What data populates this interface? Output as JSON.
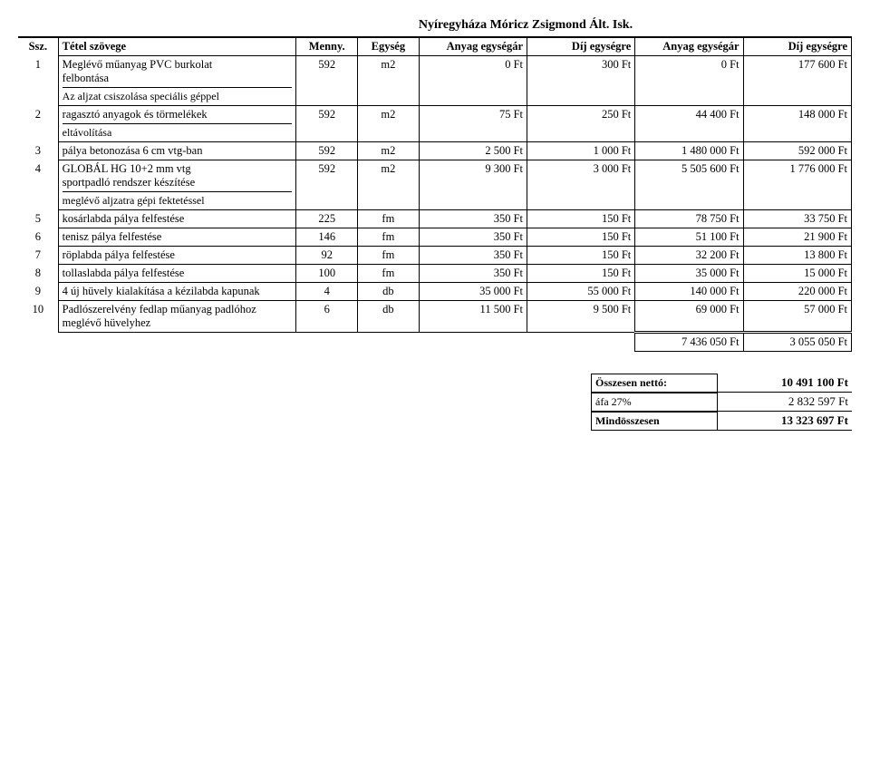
{
  "title": "Nyíregyháza Móricz Zsigmond Ált. Isk.",
  "columns": {
    "ssz": "Ssz.",
    "tetel": "Tétel szövege",
    "menny": "Menny.",
    "egyseg": "Egység",
    "anyag_egysegar": "Anyag egységár",
    "dij_egysegre": "Díj egységre",
    "anyag_egysegar2": "Anyag egységár",
    "dij_egysegre2": "Díj egységre"
  },
  "rows": [
    {
      "ssz": "1",
      "tetel": "Meglévő műanyag PVC burkolat\nfelbontása",
      "sub": "Az aljzat csiszolása speciális géppel",
      "menny": "592",
      "egyseg": "m2",
      "c1": "0 Ft",
      "c2": "300 Ft",
      "c3": "0 Ft",
      "c4": "177 600 Ft"
    },
    {
      "ssz": "2",
      "tetel": "ragasztó anyagok és törmelékek",
      "sub": "eltávolítása",
      "menny": "592",
      "egyseg": "m2",
      "c1": "75 Ft",
      "c2": "250 Ft",
      "c3": "44 400 Ft",
      "c4": "148 000 Ft"
    },
    {
      "ssz": "3",
      "tetel": "pálya betonozása 6 cm vtg-ban",
      "menny": "592",
      "egyseg": "m2",
      "c1": "2 500 Ft",
      "c2": "1 000 Ft",
      "c3": "1 480 000 Ft",
      "c4": "592 000 Ft"
    },
    {
      "ssz": "4",
      "tetel": "GLOBÁL HG 10+2 mm vtg\nsportpadló rendszer készítése",
      "sub": "meglévő aljzatra gépi fektetéssel",
      "menny": "592",
      "egyseg": "m2",
      "c1": "9 300 Ft",
      "c2": "3 000 Ft",
      "c3": "5 505 600 Ft",
      "c4": "1 776 000 Ft"
    },
    {
      "ssz": "5",
      "tetel": "kosárlabda pálya felfestése",
      "menny": "225",
      "egyseg": "fm",
      "c1": "350 Ft",
      "c2": "150 Ft",
      "c3": "78 750 Ft",
      "c4": "33 750 Ft"
    },
    {
      "ssz": "6",
      "tetel": "tenisz pálya felfestése",
      "menny": "146",
      "egyseg": "fm",
      "c1": "350 Ft",
      "c2": "150 Ft",
      "c3": "51 100 Ft",
      "c4": "21 900 Ft"
    },
    {
      "ssz": "7",
      "tetel": "röplabda pálya felfestése",
      "menny": "92",
      "egyseg": "fm",
      "c1": "350 Ft",
      "c2": "150 Ft",
      "c3": "32 200 Ft",
      "c4": "13 800 Ft"
    },
    {
      "ssz": "8",
      "tetel": "tollaslabda pálya felfestése",
      "menny": "100",
      "egyseg": "fm",
      "c1": "350 Ft",
      "c2": "150 Ft",
      "c3": "35 000 Ft",
      "c4": "15 000 Ft"
    },
    {
      "ssz": "9",
      "tetel": "4 új hüvely kialakítása a kézilabda kapunak",
      "menny": "4",
      "egyseg": "db",
      "c1": "35 000 Ft",
      "c2": "55 000 Ft",
      "c3": "140 000 Ft",
      "c4": "220 000 Ft"
    },
    {
      "ssz": "10",
      "tetel": "Padlószerelvény fedlap műanyag padlóhoz meglévő hüvelyhez",
      "menny": "6",
      "egyseg": "db",
      "c1": "11 500 Ft",
      "c2": "9 500 Ft",
      "c3": "69 000 Ft",
      "c4": "57 000 Ft"
    }
  ],
  "totals_row": {
    "c3": "7 436 050 Ft",
    "c4": "3 055 050 Ft"
  },
  "summary": {
    "osszesen_label": "Összesen nettó:",
    "osszesen_val": "10 491 100 Ft",
    "afa_label": "áfa 27%",
    "afa_val": "2 832 597 Ft",
    "mind_label": "Mindösszesen",
    "mind_val": "13 323 697 Ft"
  }
}
